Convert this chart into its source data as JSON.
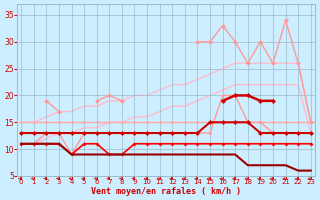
{
  "x": [
    0,
    1,
    2,
    3,
    4,
    5,
    6,
    7,
    8,
    9,
    10,
    11,
    12,
    13,
    14,
    15,
    16,
    17,
    18,
    19,
    20,
    21,
    22,
    23
  ],
  "lines": [
    {
      "y": [
        15,
        15,
        16,
        17,
        17,
        18,
        18,
        19,
        19,
        20,
        20,
        21,
        22,
        22,
        23,
        24,
        25,
        26,
        26,
        26,
        26,
        26,
        26,
        15
      ],
      "color": "#ffbbcc",
      "lw": 1.0,
      "marker": null,
      "ms": 0,
      "zo": 1
    },
    {
      "y": [
        11,
        11,
        12,
        13,
        13,
        14,
        14,
        15,
        15,
        16,
        16,
        17,
        18,
        18,
        19,
        20,
        21,
        22,
        22,
        22,
        22,
        22,
        22,
        13
      ],
      "color": "#ffbbcc",
      "lw": 1.0,
      "marker": null,
      "ms": 0,
      "zo": 1
    },
    {
      "y": [
        null,
        null,
        19,
        17,
        null,
        null,
        19,
        20,
        19,
        null,
        null,
        null,
        null,
        null,
        30,
        30,
        33,
        30,
        26,
        30,
        26,
        34,
        26,
        15
      ],
      "color": "#ff9999",
      "lw": 1.0,
      "marker": "D",
      "ms": 2.5,
      "zo": 3
    },
    {
      "y": [
        15,
        15,
        15,
        15,
        15,
        15,
        15,
        15,
        15,
        15,
        15,
        15,
        15,
        15,
        15,
        15,
        15,
        15,
        15,
        15,
        15,
        15,
        15,
        15
      ],
      "color": "#ffaaaa",
      "lw": 1.0,
      "marker": "D",
      "ms": 2.0,
      "zo": 2
    },
    {
      "y": [
        11,
        11,
        13,
        13,
        9,
        13,
        13,
        13,
        13,
        13,
        13,
        13,
        13,
        13,
        13,
        13,
        20,
        20,
        15,
        15,
        13,
        13,
        13,
        13
      ],
      "color": "#ff9999",
      "lw": 1.0,
      "marker": "D",
      "ms": 2.0,
      "zo": 2
    },
    {
      "y": [
        13,
        13,
        13,
        13,
        13,
        13,
        13,
        13,
        13,
        13,
        13,
        13,
        13,
        13,
        13,
        15,
        15,
        15,
        15,
        13,
        13,
        13,
        13,
        13
      ],
      "color": "#cc0000",
      "lw": 1.5,
      "marker": "D",
      "ms": 2.5,
      "zo": 5
    },
    {
      "y": [
        null,
        null,
        null,
        null,
        null,
        null,
        null,
        null,
        null,
        null,
        null,
        null,
        null,
        null,
        null,
        null,
        19,
        20,
        20,
        19,
        19,
        null,
        null,
        null
      ],
      "color": "#cc0000",
      "lw": 1.8,
      "marker": "D",
      "ms": 2.5,
      "zo": 6
    },
    {
      "y": [
        11,
        11,
        11,
        11,
        9,
        11,
        11,
        9,
        9,
        11,
        11,
        11,
        11,
        11,
        11,
        11,
        11,
        11,
        11,
        11,
        11,
        11,
        11,
        11
      ],
      "color": "#ff0000",
      "lw": 1.2,
      "marker": "D",
      "ms": 2.0,
      "zo": 4
    },
    {
      "y": [
        11,
        11,
        11,
        11,
        9,
        9,
        9,
        9,
        9,
        9,
        9,
        9,
        9,
        9,
        9,
        9,
        9,
        9,
        7,
        7,
        7,
        7,
        6,
        6
      ],
      "color": "#990000",
      "lw": 1.5,
      "marker": null,
      "ms": 0,
      "zo": 4
    }
  ],
  "xlim": [
    -0.3,
    23.3
  ],
  "ylim": [
    5,
    37
  ],
  "yticks": [
    5,
    10,
    15,
    20,
    25,
    30,
    35
  ],
  "xticks": [
    0,
    1,
    2,
    3,
    4,
    5,
    6,
    7,
    8,
    9,
    10,
    11,
    12,
    13,
    14,
    15,
    16,
    17,
    18,
    19,
    20,
    21,
    22,
    23
  ],
  "xlabel": "Vent moyen/en rafales ( km/h )",
  "xlabel_color": "#cc0000",
  "bg_color": "#cceeff",
  "grid_color": "#99bbcc",
  "tick_color": "#cc0000",
  "arrow_color": "#cc0000",
  "figsize": [
    3.2,
    2.0
  ],
  "dpi": 100
}
